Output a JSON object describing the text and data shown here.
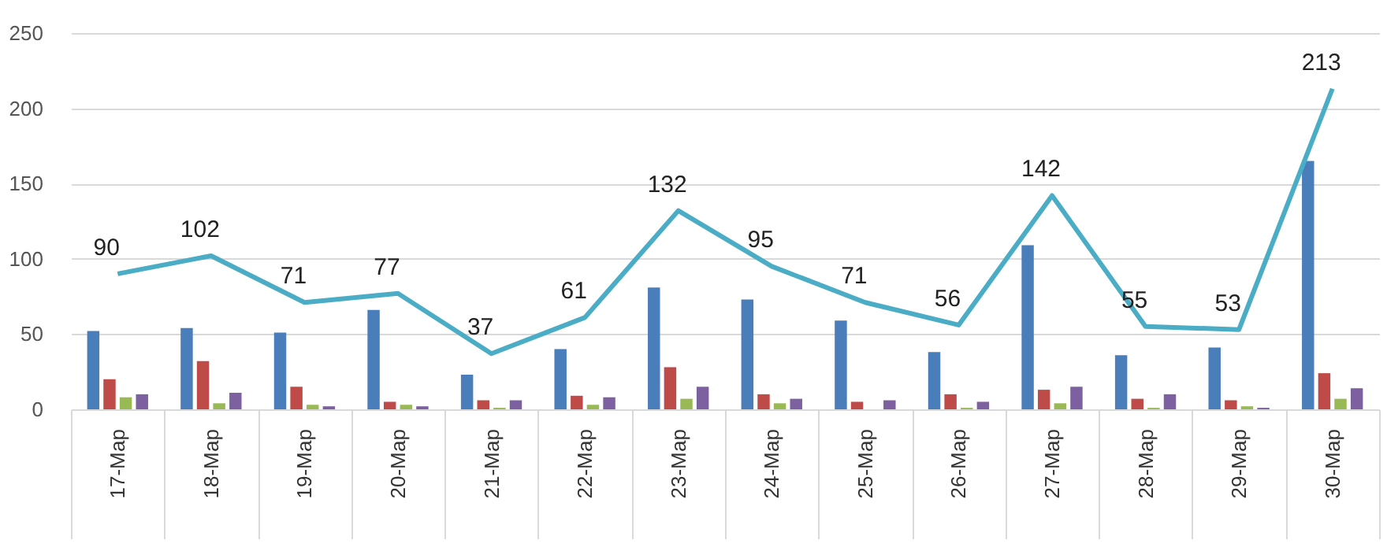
{
  "chart_data": {
    "type": "bar",
    "categories": [
      "17-Мар",
      "18-Мар",
      "19-Мар",
      "20-Мар",
      "21-Мар",
      "22-Мар",
      "23-Мар",
      "24-Мар",
      "25-Мар",
      "26-Мар",
      "27-Мар",
      "28-Мар",
      "29-Мар",
      "30-Мар"
    ],
    "series": [
      {
        "color": "#4a7ebb",
        "values": [
          52,
          54,
          51,
          66,
          23,
          40,
          81,
          73,
          59,
          38,
          109,
          36,
          41,
          165
        ]
      },
      {
        "color": "#be4b48",
        "values": [
          20,
          32,
          15,
          5,
          6,
          9,
          28,
          10,
          5,
          10,
          13,
          7,
          6,
          24
        ]
      },
      {
        "color": "#98b954",
        "values": [
          8,
          4,
          3,
          3,
          1,
          3,
          7,
          4,
          0,
          1,
          4,
          1,
          2,
          7
        ]
      },
      {
        "color": "#7d60a0",
        "values": [
          10,
          11,
          2,
          2,
          6,
          8,
          15,
          7,
          6,
          5,
          15,
          10,
          1,
          14
        ]
      },
      {
        "type": "line",
        "color": "#4bacc6",
        "values": [
          90,
          102,
          71,
          77,
          37,
          61,
          132,
          95,
          71,
          56,
          142,
          55,
          53,
          213
        ],
        "value_labels": [
          "90",
          "102",
          "71",
          "77",
          "37",
          "61",
          "132",
          "95",
          "71",
          "56",
          "142",
          "55",
          "53",
          "213"
        ]
      }
    ],
    "ylim": [
      0,
      250
    ],
    "yticks": [
      0,
      50,
      100,
      150,
      200,
      250
    ],
    "grid": "y",
    "legend": false,
    "marker": "none"
  }
}
